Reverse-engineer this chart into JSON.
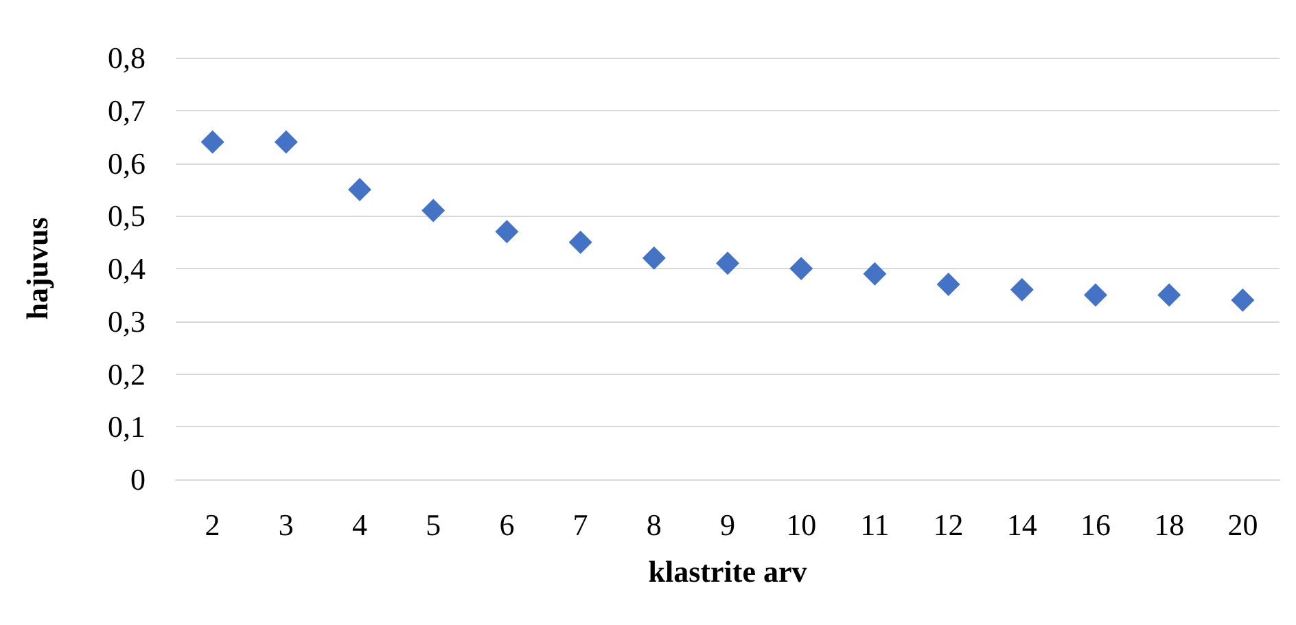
{
  "chart_data": {
    "type": "scatter",
    "xlabel": "klastrite arv",
    "ylabel": "hajuvus",
    "categories": [
      "2",
      "3",
      "4",
      "5",
      "6",
      "7",
      "8",
      "9",
      "10",
      "11",
      "12",
      "14",
      "16",
      "18",
      "20"
    ],
    "series": [
      {
        "color": "#4472c4",
        "values": [
          0.64,
          0.64,
          0.55,
          0.51,
          0.47,
          0.45,
          0.42,
          0.41,
          0.4,
          0.39,
          0.37,
          0.36,
          0.35,
          0.35,
          0.34
        ]
      }
    ],
    "ylim": [
      0,
      0.8
    ],
    "yticks": [
      {
        "value": 0,
        "label": "0"
      },
      {
        "value": 0.1,
        "label": "0,1"
      },
      {
        "value": 0.2,
        "label": "0,2"
      },
      {
        "value": 0.3,
        "label": "0,3"
      },
      {
        "value": 0.4,
        "label": "0,4"
      },
      {
        "value": 0.5,
        "label": "0,5"
      },
      {
        "value": 0.6,
        "label": "0,6"
      },
      {
        "value": 0.7,
        "label": "0,7"
      },
      {
        "value": 0.8,
        "label": "0,8"
      }
    ],
    "grid": "y",
    "marker": "diamond"
  }
}
